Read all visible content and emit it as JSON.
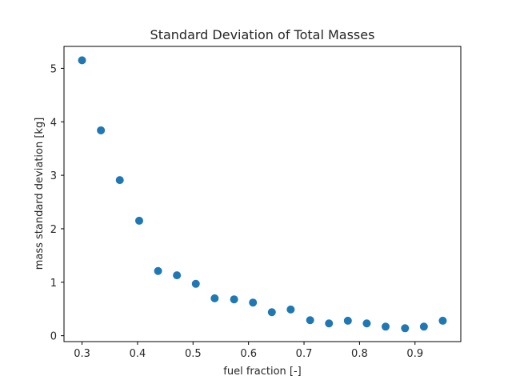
{
  "chart_data": {
    "type": "scatter",
    "title": "Standard Deviation of Total Masses",
    "xlabel": "fuel fraction [-]",
    "ylabel": "mass standard deviation [kg]",
    "xlim": [
      0.2675,
      0.9825
    ],
    "ylim": [
      -0.11,
      5.41
    ],
    "xticks": [
      0.3,
      0.4,
      0.5,
      0.6,
      0.7,
      0.8,
      0.9
    ],
    "xtick_labels": [
      "0.3",
      "0.4",
      "0.5",
      "0.6",
      "0.7",
      "0.8",
      "0.9"
    ],
    "yticks": [
      0,
      1,
      2,
      3,
      4,
      5
    ],
    "ytick_labels": [
      "0",
      "1",
      "2",
      "3",
      "4",
      "5"
    ],
    "grid": false,
    "marker_color": "#1f77b4",
    "series": [
      {
        "x": [
          0.3,
          0.334,
          0.368,
          0.403,
          0.437,
          0.471,
          0.505,
          0.539,
          0.574,
          0.608,
          0.642,
          0.676,
          0.711,
          0.745,
          0.779,
          0.813,
          0.847,
          0.882,
          0.916,
          0.95
        ],
        "y": [
          5.15,
          3.84,
          2.91,
          2.15,
          1.21,
          1.13,
          0.97,
          0.7,
          0.68,
          0.62,
          0.44,
          0.49,
          0.29,
          0.23,
          0.28,
          0.23,
          0.17,
          0.14,
          0.17,
          0.28
        ]
      }
    ]
  }
}
